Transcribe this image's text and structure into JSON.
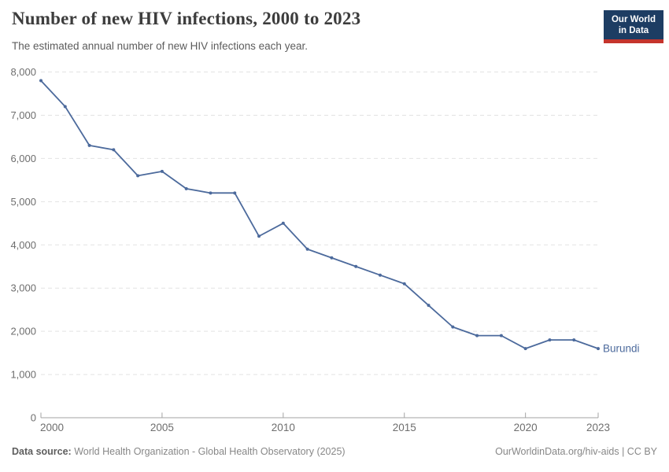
{
  "header": {
    "title": "Number of new HIV infections, 2000 to 2023",
    "subtitle": "The estimated annual number of new HIV infections each year.",
    "logo": {
      "line1": "Our World",
      "line2": "in Data",
      "navy": "#1d3d63",
      "red": "#c5342c"
    }
  },
  "chart_data": {
    "type": "line",
    "title": "Number of new HIV infections, 2000 to 2023",
    "xlabel": "",
    "ylabel": "",
    "xlim": [
      2000,
      2023
    ],
    "ylim": [
      0,
      8000
    ],
    "x_ticks": [
      2000,
      2005,
      2010,
      2015,
      2020,
      2023
    ],
    "y_ticks": [
      0,
      1000,
      2000,
      3000,
      4000,
      5000,
      6000,
      7000,
      8000
    ],
    "grid": "horizontal-dashed",
    "legend_position": "end-of-line-label",
    "grid_color": "#e2e2e2",
    "axis_color": "#a3a3a3",
    "tick_color": "#6e6e6e",
    "series": [
      {
        "name": "Burundi",
        "color": "#4C6A9C",
        "x": [
          2000,
          2001,
          2002,
          2003,
          2004,
          2005,
          2006,
          2007,
          2008,
          2009,
          2010,
          2011,
          2012,
          2013,
          2014,
          2015,
          2016,
          2017,
          2018,
          2019,
          2020,
          2021,
          2022,
          2023
        ],
        "values": [
          7800,
          7200,
          6300,
          6200,
          5600,
          5700,
          5300,
          5200,
          5200,
          4200,
          4500,
          3900,
          3700,
          3500,
          3300,
          3100,
          2600,
          2100,
          1900,
          1900,
          1600,
          1800,
          1800,
          1600
        ]
      }
    ]
  },
  "footer": {
    "source_label": "Data source:",
    "source_text": " World Health Organization - Global Health Observatory (2025)",
    "link_text": "OurWorldinData.org/hiv-aids | CC BY"
  }
}
